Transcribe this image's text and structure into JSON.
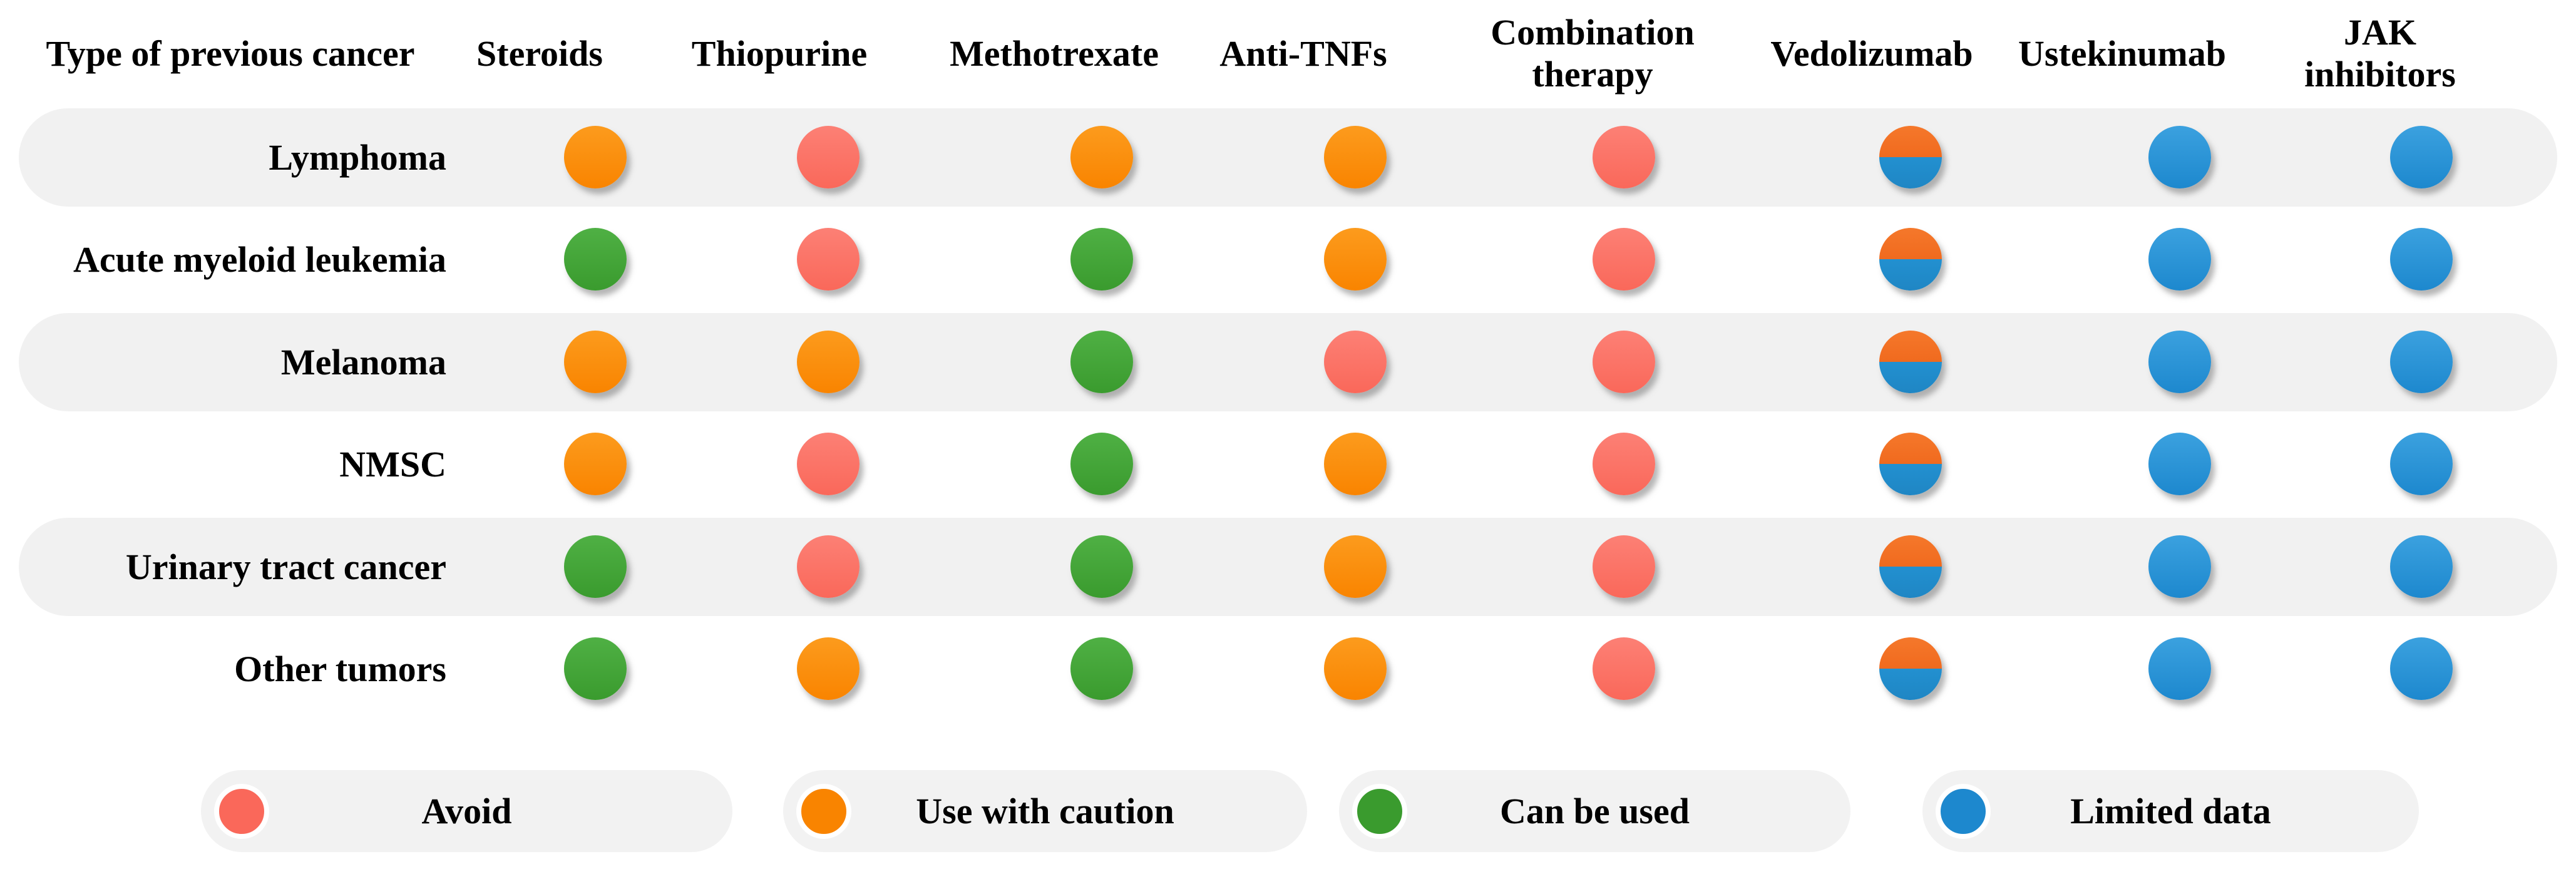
{
  "palette": {
    "avoid": "#FA685A",
    "caution": "#F98400",
    "can": "#3A9B2E",
    "limited": "#1D88CE",
    "split_top": "#F5782B",
    "split_bottom": "#1F86C4",
    "band": "#F1F1F1",
    "pill": "#F2F2F2"
  },
  "table": {
    "header": {
      "row_label": "Type of previous cancer",
      "columns": [
        "Steroids",
        "Thiopurine",
        "Methotrexate",
        "Anti-TNFs",
        "Combination\ntherapy",
        "Vedolizumab",
        "Ustekinumab",
        "JAK\ninhibitors"
      ]
    },
    "rows": [
      {
        "label": "Lymphoma",
        "values": [
          "caution",
          "avoid",
          "caution",
          "caution",
          "avoid",
          "mixed",
          "limited",
          "limited"
        ]
      },
      {
        "label": "Acute myeloid leukemia",
        "values": [
          "can",
          "avoid",
          "can",
          "caution",
          "avoid",
          "mixed",
          "limited",
          "limited"
        ]
      },
      {
        "label": "Melanoma",
        "values": [
          "caution",
          "caution",
          "can",
          "avoid",
          "avoid",
          "mixed",
          "limited",
          "limited"
        ]
      },
      {
        "label": "NMSC",
        "values": [
          "caution",
          "avoid",
          "can",
          "caution",
          "avoid",
          "mixed",
          "limited",
          "limited"
        ]
      },
      {
        "label": "Urinary tract cancer",
        "values": [
          "can",
          "avoid",
          "can",
          "caution",
          "avoid",
          "mixed",
          "limited",
          "limited"
        ]
      },
      {
        "label": "Other tumors",
        "values": [
          "can",
          "caution",
          "can",
          "caution",
          "avoid",
          "mixed",
          "limited",
          "limited"
        ]
      }
    ]
  },
  "legend": [
    {
      "key": "avoid",
      "label": "Avoid"
    },
    {
      "key": "caution",
      "label": "Use with caution"
    },
    {
      "key": "can",
      "label": "Can be used"
    },
    {
      "key": "limited",
      "label": "Limited data"
    }
  ],
  "chart_data": {
    "type": "table",
    "title": "",
    "row_header": "Type of previous cancer",
    "columns": [
      "Steroids",
      "Thiopurine",
      "Methotrexate",
      "Anti-TNFs",
      "Combination therapy",
      "Vedolizumab",
      "Ustekinumab",
      "JAK inhibitors"
    ],
    "rows": [
      "Lymphoma",
      "Acute myeloid leukemia",
      "Melanoma",
      "NMSC",
      "Urinary tract cancer",
      "Other tumors"
    ],
    "values": [
      [
        "caution",
        "avoid",
        "caution",
        "caution",
        "avoid",
        "mixed",
        "limited",
        "limited"
      ],
      [
        "can",
        "avoid",
        "can",
        "caution",
        "avoid",
        "mixed",
        "limited",
        "limited"
      ],
      [
        "caution",
        "caution",
        "can",
        "avoid",
        "avoid",
        "mixed",
        "limited",
        "limited"
      ],
      [
        "caution",
        "avoid",
        "can",
        "caution",
        "avoid",
        "mixed",
        "limited",
        "limited"
      ],
      [
        "can",
        "avoid",
        "can",
        "caution",
        "avoid",
        "mixed",
        "limited",
        "limited"
      ],
      [
        "can",
        "caution",
        "can",
        "caution",
        "avoid",
        "mixed",
        "limited",
        "limited"
      ]
    ],
    "legend": {
      "avoid": "Avoid",
      "caution": "Use with caution",
      "can": "Can be used",
      "limited": "Limited data",
      "mixed": "half caution / half limited data"
    },
    "legend_position": "bottom",
    "grid": false
  }
}
